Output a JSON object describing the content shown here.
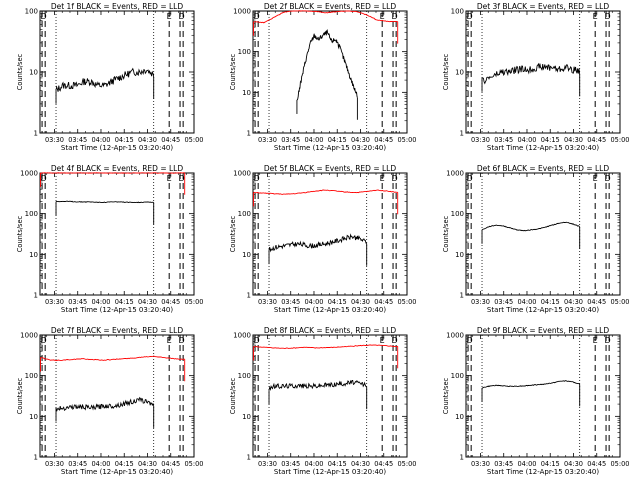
{
  "figure": {
    "xtick_labels": [
      "03:30",
      "03:45",
      "04:00",
      "04:15",
      "04:30",
      "04:45",
      "05:00"
    ],
    "ytick_labels": [
      "1",
      "10",
      "100",
      "1000"
    ],
    "xlabel": "Start Time (12-Apr-15 03:20:40)",
    "ylabel": "Counts/sec",
    "colors": {
      "events": "#000000",
      "lld": "#ff0000"
    }
  },
  "chart_data": [
    {
      "type": "line",
      "title": "Det 1f BLACK = Events, RED = LLD",
      "ymax_decade": 2,
      "markers": [
        {
          "label": "D",
          "x": "03:23"
        },
        {
          "label": "E",
          "x": "04:44"
        },
        {
          "label": "D",
          "x": "04:52"
        }
      ],
      "lld": null,
      "events": {
        "start": "03:31",
        "end": "04:34",
        "profile": "noisy",
        "values": [
          5,
          6,
          6,
          6,
          7,
          7,
          6,
          6,
          7,
          8,
          9,
          10,
          10,
          11,
          9
        ]
      }
    },
    {
      "type": "line",
      "title": "Det 2f BLACK = Events, RED = LLD",
      "ymax_decade": 3,
      "markers": [
        {
          "label": "D",
          "x": "03:23"
        },
        {
          "label": "E",
          "x": "04:44"
        },
        {
          "label": "D",
          "x": "04:52"
        }
      ],
      "lld": {
        "start": "03:21",
        "end": "04:54",
        "values": [
          550,
          520,
          700,
          950,
          1000,
          1000,
          980,
          900,
          960,
          1000,
          980,
          800,
          600,
          560,
          540
        ]
      },
      "events": {
        "start": "03:49",
        "end": "04:28",
        "profile": "noisy",
        "values": [
          6,
          20,
          60,
          150,
          250,
          200,
          250,
          300,
          180,
          200,
          120,
          60,
          30,
          15,
          8
        ]
      }
    },
    {
      "type": "line",
      "title": "Det 3f BLACK = Events, RED = LLD",
      "ymax_decade": 2,
      "markers": [
        {
          "label": "D",
          "x": "03:23"
        },
        {
          "label": "E",
          "x": "04:44"
        },
        {
          "label": "D",
          "x": "04:52"
        }
      ],
      "lld": null,
      "events": {
        "start": "03:31",
        "end": "04:34",
        "profile": "noisy",
        "values": [
          7,
          8,
          9,
          10,
          10,
          11,
          11,
          11,
          12,
          12,
          12,
          11,
          12,
          11,
          10
        ]
      }
    },
    {
      "type": "line",
      "title": "Det 4f BLACK = Events, RED = LLD",
      "ymax_decade": 3,
      "markers": [
        {
          "label": "D",
          "x": "03:23"
        },
        {
          "label": "E",
          "x": "04:44"
        },
        {
          "label": "D",
          "x": "04:52"
        }
      ],
      "lld": {
        "start": "03:21",
        "end": "04:54",
        "values": [
          1000,
          1000,
          1000,
          1000,
          1000,
          1000,
          1000,
          1000,
          1000,
          1000,
          1000,
          1000,
          1000,
          1000,
          1000
        ]
      },
      "events": {
        "start": "03:31",
        "end": "04:34",
        "profile": "smooth",
        "values": [
          200,
          200,
          200,
          195,
          195,
          195,
          190,
          190,
          195,
          195,
          190,
          190,
          190,
          195,
          190
        ]
      }
    },
    {
      "type": "line",
      "title": "Det 5f BLACK = Events, RED = LLD",
      "ymax_decade": 3,
      "markers": [
        {
          "label": "D",
          "x": "03:23"
        },
        {
          "label": "E",
          "x": "04:44"
        },
        {
          "label": "D",
          "x": "04:52"
        }
      ],
      "lld": {
        "start": "03:21",
        "end": "04:54",
        "values": [
          330,
          320,
          310,
          300,
          310,
          330,
          360,
          380,
          360,
          340,
          330,
          350,
          380,
          360,
          330
        ]
      },
      "events": {
        "start": "03:31",
        "end": "04:34",
        "profile": "noisy",
        "values": [
          13,
          15,
          16,
          17,
          18,
          17,
          16,
          17,
          18,
          20,
          22,
          25,
          27,
          24,
          20
        ]
      }
    },
    {
      "type": "line",
      "title": "Det 6f BLACK = Events, RED = LLD",
      "ymax_decade": 3,
      "markers": [
        {
          "label": "D",
          "x": "03:23"
        },
        {
          "label": "E",
          "x": "04:44"
        },
        {
          "label": "D",
          "x": "04:52"
        }
      ],
      "lld": null,
      "events": {
        "start": "03:31",
        "end": "04:34",
        "profile": "smooth",
        "values": [
          40,
          48,
          52,
          50,
          45,
          40,
          38,
          40,
          42,
          46,
          52,
          58,
          62,
          56,
          48
        ]
      }
    },
    {
      "type": "line",
      "title": "Det 7f BLACK = Events, RED = LLD",
      "ymax_decade": 3,
      "markers": [
        {
          "label": "D",
          "x": "03:23"
        },
        {
          "label": "E",
          "x": "04:44"
        },
        {
          "label": "D",
          "x": "04:52"
        }
      ],
      "lld": {
        "start": "03:21",
        "end": "04:54",
        "values": [
          280,
          240,
          240,
          250,
          260,
          250,
          240,
          250,
          260,
          270,
          290,
          300,
          280,
          260,
          250
        ]
      },
      "events": {
        "start": "03:31",
        "end": "04:34",
        "profile": "noisy",
        "values": [
          15,
          16,
          17,
          17,
          17,
          16,
          17,
          18,
          18,
          19,
          21,
          23,
          25,
          23,
          20
        ]
      }
    },
    {
      "type": "line",
      "title": "Det 8f BLACK = Events, RED = LLD",
      "ymax_decade": 3,
      "markers": [
        {
          "label": "D",
          "x": "03:23"
        },
        {
          "label": "E",
          "x": "04:44"
        },
        {
          "label": "D",
          "x": "04:52"
        }
      ],
      "lld": {
        "start": "03:21",
        "end": "04:54",
        "values": [
          520,
          500,
          480,
          470,
          480,
          500,
          480,
          490,
          500,
          520,
          540,
          560,
          560,
          540,
          520
        ]
      },
      "events": {
        "start": "03:31",
        "end": "04:34",
        "profile": "noisy",
        "values": [
          50,
          55,
          55,
          56,
          57,
          56,
          55,
          56,
          58,
          60,
          62,
          65,
          68,
          64,
          58
        ]
      }
    },
    {
      "type": "line",
      "title": "Det 9f BLACK = Events, RED = LLD",
      "ymax_decade": 3,
      "markers": [
        {
          "label": "D",
          "x": "03:23"
        },
        {
          "label": "E",
          "x": "04:44"
        },
        {
          "label": "D",
          "x": "04:52"
        }
      ],
      "lld": null,
      "events": {
        "start": "03:31",
        "end": "04:34",
        "profile": "smooth",
        "values": [
          50,
          55,
          58,
          56,
          55,
          55,
          56,
          58,
          60,
          62,
          66,
          72,
          75,
          70,
          62
        ]
      }
    }
  ]
}
